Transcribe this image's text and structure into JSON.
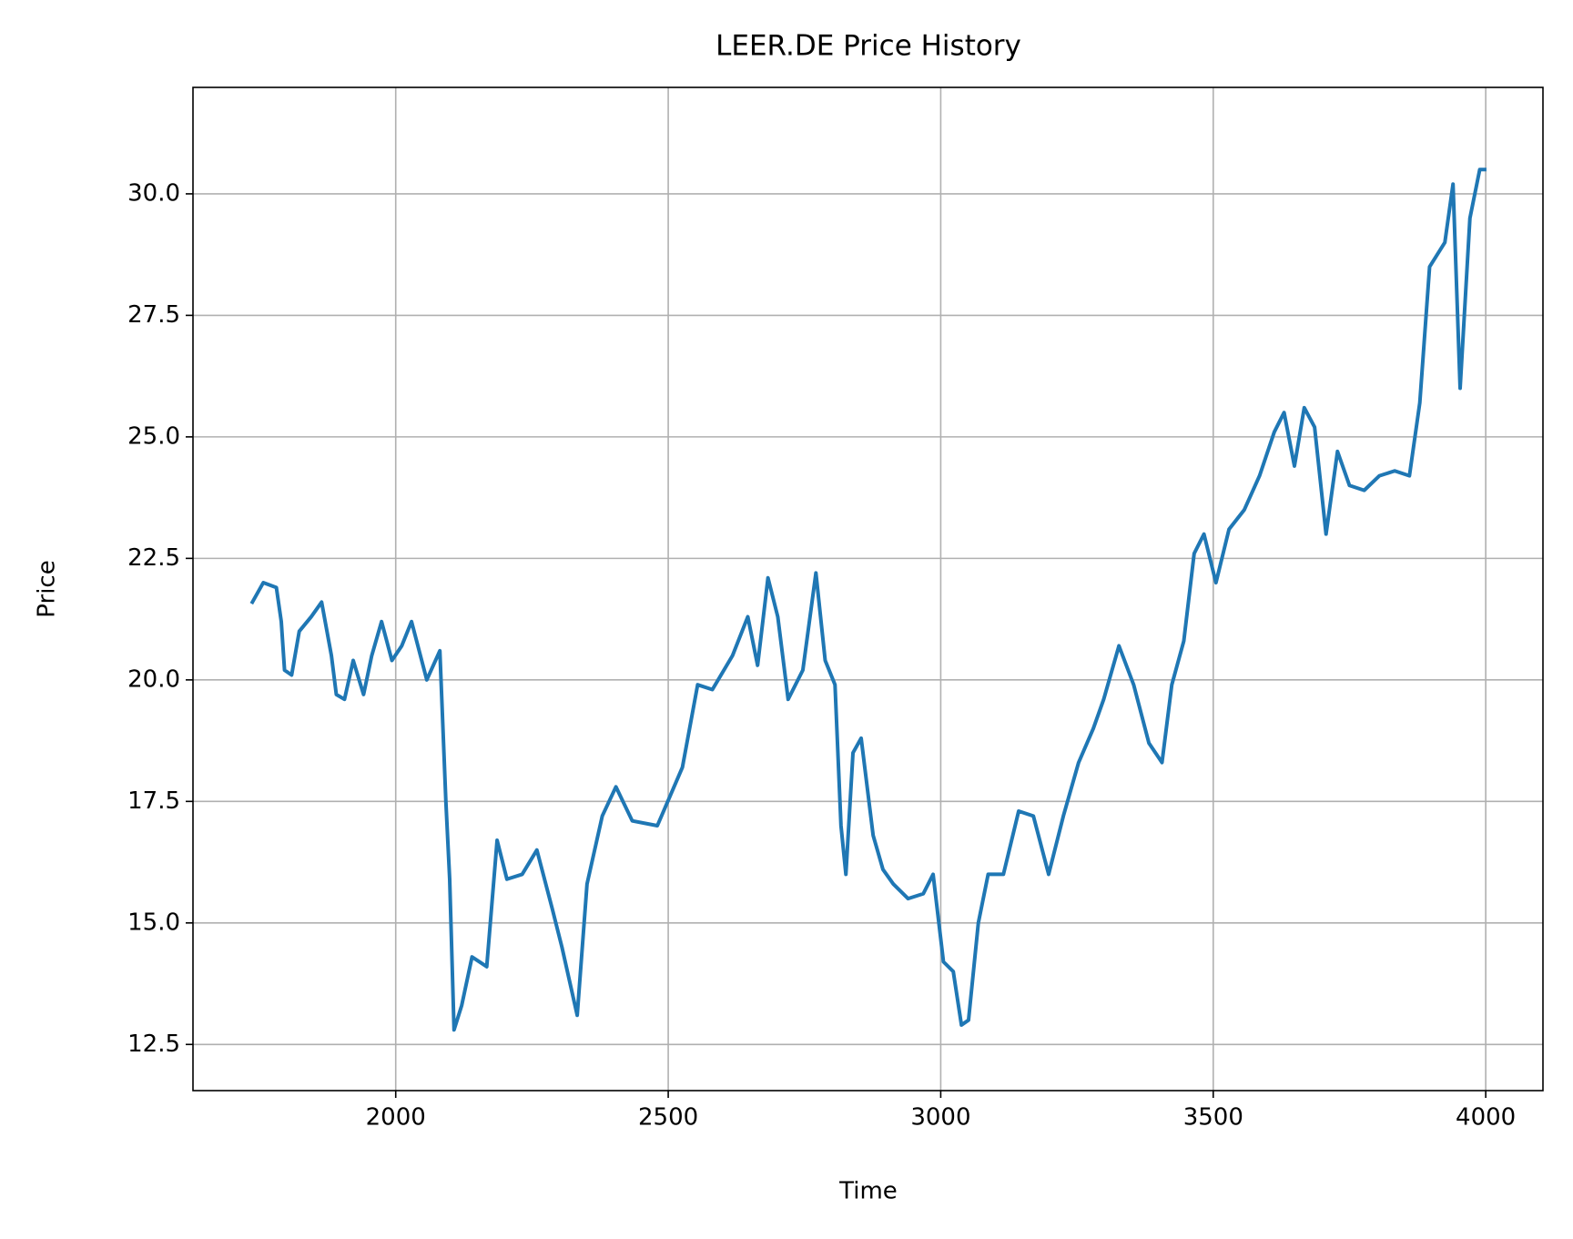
{
  "chart_data": {
    "type": "line",
    "title": "LEER.DE Price History",
    "x_label": "Time",
    "y_label": "Price",
    "x": [
      1737,
      1757,
      1781,
      1790,
      1796,
      1809,
      1823,
      1845,
      1864,
      1882,
      1891,
      1906,
      1922,
      1941,
      1956,
      1974,
      1993,
      2011,
      2029,
      2057,
      2081,
      2092,
      2099,
      2107,
      2121,
      2140,
      2167,
      2186,
      2204,
      2232,
      2259,
      2287,
      2305,
      2333,
      2351,
      2379,
      2404,
      2434,
      2480,
      2526,
      2554,
      2581,
      2618,
      2646,
      2664,
      2683,
      2701,
      2720,
      2747,
      2771,
      2788,
      2806,
      2817,
      2826,
      2839,
      2854,
      2876,
      2894,
      2913,
      2940,
      2968,
      2986,
      3005,
      3023,
      3038,
      3051,
      3069,
      3087,
      3115,
      3143,
      3170,
      3198,
      3225,
      3253,
      3280,
      3299,
      3327,
      3354,
      3382,
      3406,
      3424,
      3446,
      3465,
      3483,
      3505,
      3529,
      3557,
      3585,
      3612,
      3630,
      3649,
      3667,
      3686,
      3707,
      3728,
      3750,
      3777,
      3805,
      3833,
      3860,
      3879,
      3897,
      3925,
      3940,
      3953,
      3971,
      3989,
      3998
    ],
    "series": [
      {
        "name": "Price",
        "color": "#1f77b4",
        "values": [
          21.6,
          22.0,
          21.9,
          21.2,
          20.2,
          20.1,
          21.0,
          21.3,
          21.6,
          20.5,
          19.7,
          19.6,
          20.4,
          19.7,
          20.5,
          21.2,
          20.4,
          20.7,
          21.2,
          20.0,
          20.6,
          17.5,
          15.9,
          12.8,
          13.3,
          14.3,
          14.1,
          16.7,
          15.9,
          16.0,
          16.5,
          15.3,
          14.5,
          13.1,
          15.8,
          17.2,
          17.8,
          17.1,
          17.0,
          18.2,
          19.9,
          19.8,
          20.5,
          21.3,
          20.3,
          22.1,
          21.3,
          19.6,
          20.2,
          22.2,
          20.4,
          19.9,
          17.0,
          16.0,
          18.5,
          18.8,
          16.8,
          16.1,
          15.8,
          15.5,
          15.6,
          16.0,
          14.2,
          14.0,
          12.9,
          13.0,
          15.0,
          16.0,
          16.0,
          17.3,
          17.2,
          16.0,
          17.2,
          18.3,
          19.0,
          19.6,
          20.7,
          19.9,
          18.7,
          18.3,
          19.9,
          20.8,
          22.6,
          23.0,
          22.0,
          23.1,
          23.5,
          24.2,
          25.1,
          25.5,
          24.4,
          25.6,
          25.2,
          23.0,
          24.7,
          24.0,
          23.9,
          24.2,
          24.3,
          24.2,
          25.7,
          28.5,
          29.0,
          30.2,
          26.0,
          29.5,
          30.5,
          30.5
        ]
      }
    ],
    "xlim": [
      1628,
      4105
    ],
    "ylim": [
      11.55,
      32.19
    ],
    "xticks": [
      2000,
      2500,
      3000,
      3500,
      4000
    ],
    "yticks": [
      12.5,
      {
        "value": 15,
        "label": "15.0"
      },
      17.5,
      {
        "value": 20,
        "label": "20.0"
      },
      22.5,
      {
        "value": 25,
        "label": "25.0"
      },
      27.5,
      {
        "value": 30,
        "label": "30.0"
      }
    ],
    "grid": true
  }
}
